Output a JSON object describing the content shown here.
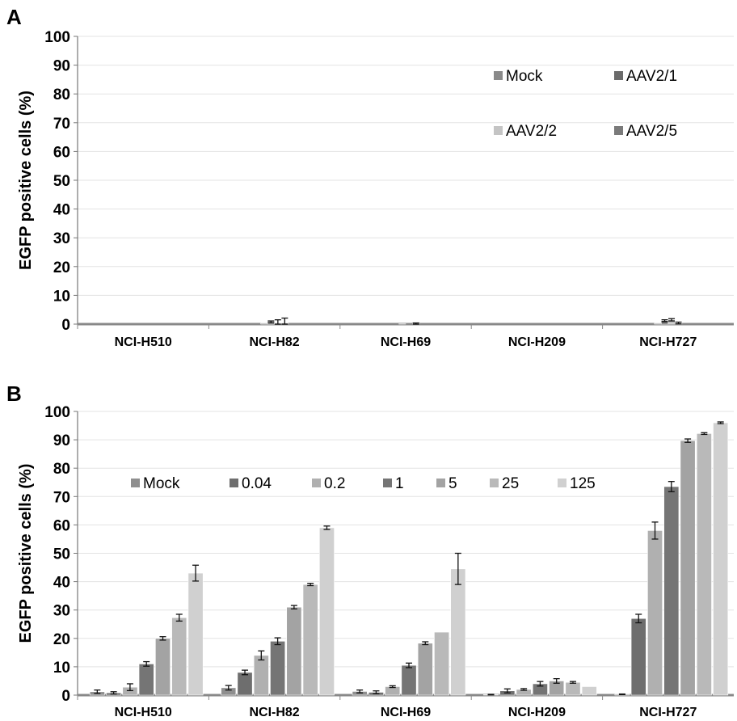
{
  "chart_data": [
    {
      "panel": "A",
      "type": "bar",
      "ylabel": "EGFP positive cells (%)",
      "ylim": [
        0,
        100
      ],
      "yticks": [
        0,
        10,
        20,
        30,
        40,
        50,
        60,
        70,
        80,
        90,
        100
      ],
      "grid": true,
      "legend_position": "top-right",
      "categories": [
        "NCI-H510",
        "NCI-H82",
        "NCI-H69",
        "NCI-H209",
        "NCI-H727"
      ],
      "series": [
        {
          "name": "Mock",
          "color": "#8a8a8a",
          "values": [
            0.0,
            0.3,
            0.0,
            0.0,
            0.3
          ],
          "errors": [
            0,
            0,
            0,
            0,
            0
          ]
        },
        {
          "name": "AAV2/1",
          "color": "#6b6b6b",
          "values": [
            0.0,
            0.8,
            0.1,
            0.0,
            1.2
          ],
          "errors": [
            0,
            0.3,
            0,
            0,
            0.3
          ]
        },
        {
          "name": "AAV2/2",
          "color": "#c4c4c4",
          "values": [
            0.0,
            0.3,
            0.0,
            0.0,
            1.5
          ],
          "errors": [
            0,
            1.2,
            0,
            0,
            0.4
          ]
        },
        {
          "name": "AAV2/5",
          "color": "#7a7a7a",
          "values": [
            0.0,
            0.3,
            0.2,
            0.0,
            0.4
          ],
          "errors": [
            0,
            1.8,
            0.2,
            0,
            0.3
          ]
        }
      ]
    },
    {
      "panel": "B",
      "type": "bar",
      "ylabel": "EGFP positive cells (%)",
      "ylim": [
        0,
        100
      ],
      "yticks": [
        0,
        10,
        20,
        30,
        40,
        50,
        60,
        70,
        80,
        90,
        100
      ],
      "grid": true,
      "legend_position": "top-left",
      "categories": [
        "NCI-H510",
        "NCI-H82",
        "NCI-H69",
        "NCI-H209",
        "NCI-H727"
      ],
      "series": [
        {
          "name": "Mock",
          "color": "#8f8f8f",
          "values": [
            1.2,
            2.6,
            1.3,
            0.2,
            0.3
          ],
          "errors": [
            0.6,
            0.8,
            0.5,
            0.1,
            0.1
          ]
        },
        {
          "name": "0.04",
          "color": "#6e6e6e",
          "values": [
            0.8,
            8.0,
            1.0,
            1.5,
            27.0
          ],
          "errors": [
            0.4,
            0.8,
            0.5,
            0.7,
            1.5
          ]
        },
        {
          "name": "0.2",
          "color": "#b0b0b0",
          "values": [
            2.8,
            14.0,
            3.0,
            2.0,
            58.0
          ],
          "errors": [
            1.2,
            1.6,
            0.3,
            0.3,
            3.0
          ]
        },
        {
          "name": "1",
          "color": "#757575",
          "values": [
            11.0,
            19.0,
            10.5,
            4.0,
            73.5
          ],
          "errors": [
            0.8,
            1.2,
            0.8,
            0.8,
            1.8
          ]
        },
        {
          "name": "5",
          "color": "#a3a3a3",
          "values": [
            20.0,
            31.0,
            18.3,
            5.0,
            89.7
          ],
          "errors": [
            0.6,
            0.6,
            0.5,
            0.8,
            0.6
          ]
        },
        {
          "name": "25",
          "color": "#b9b9b9",
          "values": [
            27.3,
            39.0,
            22.2,
            4.5,
            92.2
          ],
          "errors": [
            1.2,
            0.4,
            0.0,
            0.3,
            0.3
          ]
        },
        {
          "name": "125",
          "color": "#d0d0d0",
          "values": [
            43.0,
            59.0,
            44.5,
            3.0,
            96.0
          ],
          "errors": [
            2.8,
            0.6,
            5.5,
            0.0,
            0.3
          ]
        }
      ]
    }
  ]
}
